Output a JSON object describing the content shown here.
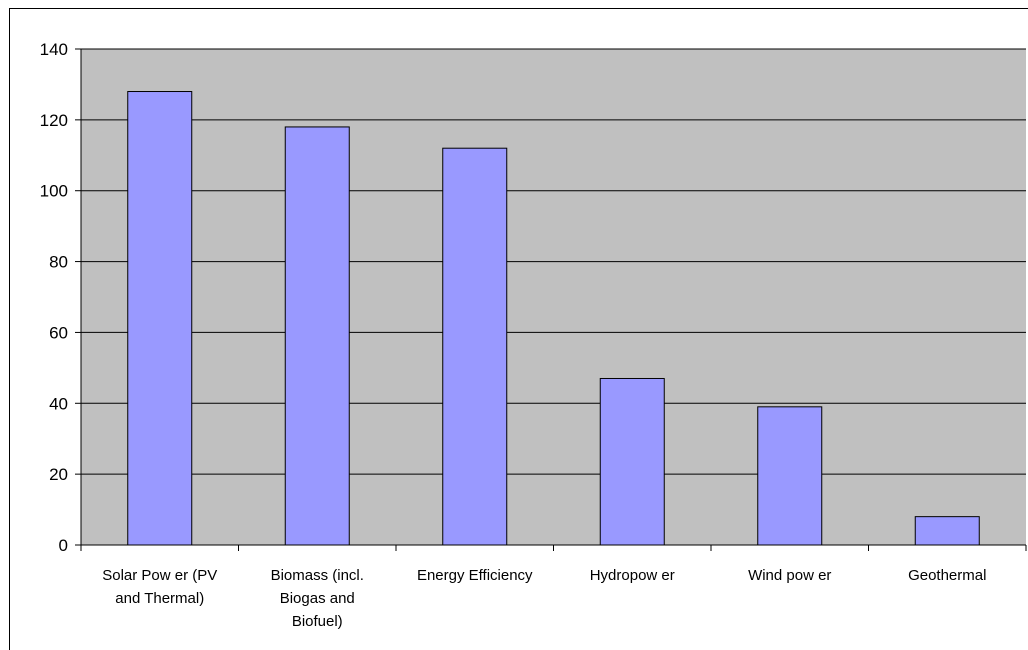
{
  "colors": {
    "plot_background": "#c0c0c0",
    "bar_fill": "#9999ff",
    "bar_stroke": "#000000",
    "gridline": "#000000"
  },
  "chart_data": {
    "type": "bar",
    "categories": [
      [
        "Solar Pow er (PV",
        "and Thermal)"
      ],
      [
        "Biomass (incl.",
        "Biogas and",
        "Biofuel)"
      ],
      [
        "Energy Efficiency"
      ],
      [
        "Hydropow er"
      ],
      [
        "Wind pow er"
      ],
      [
        "Geothermal"
      ]
    ],
    "values": [
      128,
      118,
      112,
      47,
      39,
      8
    ],
    "ylim": [
      0,
      140
    ],
    "yticks": [
      0,
      20,
      40,
      60,
      80,
      100,
      120,
      140
    ],
    "grid": true,
    "legend": "none"
  }
}
